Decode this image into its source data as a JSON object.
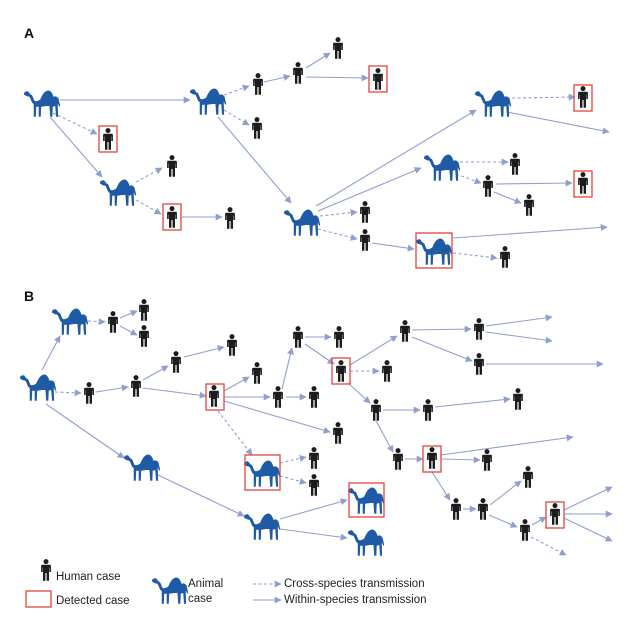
{
  "panels": {
    "a_label": "A",
    "b_label": "B"
  },
  "legend": {
    "human_case": "Human case",
    "detected_case": "Detected case",
    "animal_case_line1": "Animal",
    "animal_case_line2": "case",
    "cross_species": "Cross-species transmission",
    "within_species": "Within-species transmission"
  },
  "colors": {
    "camel": "#1f5aa6",
    "human": "#1c1c1c",
    "arrow": "#8f9fd0",
    "detected_box": "#e0463c"
  },
  "icons": {
    "camel": "camel-icon",
    "human": "human-icon"
  }
}
